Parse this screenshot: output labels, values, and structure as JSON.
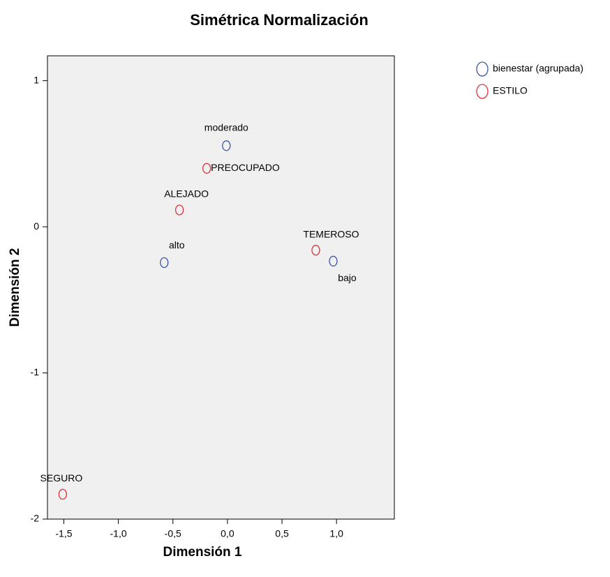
{
  "chart_data": {
    "type": "scatter",
    "title": "Simétrica Normalización",
    "x_label": "Dimensión 1",
    "y_label": "Dimensión 2",
    "xlim": [
      -1.65,
      1.53
    ],
    "ylim": [
      -2,
      1.17
    ],
    "xticks": [
      {
        "value": -1.5,
        "label": "-1,5"
      },
      {
        "value": -1.0,
        "label": "-1,0"
      },
      {
        "value": -0.5,
        "label": "-0,5"
      },
      {
        "value": 0.0,
        "label": "0,0"
      },
      {
        "value": 0.5,
        "label": "0,5"
      },
      {
        "value": 1.0,
        "label": "1,0"
      }
    ],
    "yticks": [
      1,
      0,
      -1,
      -2
    ],
    "series": [
      {
        "name": "bienestar (agrupada)",
        "color": "#3b58a8",
        "labels": [
          "moderado",
          "alto",
          "bajo"
        ],
        "x": [
          -0.01,
          -0.58,
          0.97
        ],
        "values": [
          0.555,
          -0.245,
          -0.235
        ]
      },
      {
        "name": "ESTILO",
        "color": "#e0303c",
        "labels": [
          "PREOCUPADO",
          "ALEJADO",
          "TEMEROSO",
          "SEGURO"
        ],
        "x": [
          -0.19,
          -0.44,
          0.81,
          -1.51
        ],
        "values": [
          0.4,
          0.115,
          -0.16,
          -1.83
        ]
      }
    ]
  }
}
